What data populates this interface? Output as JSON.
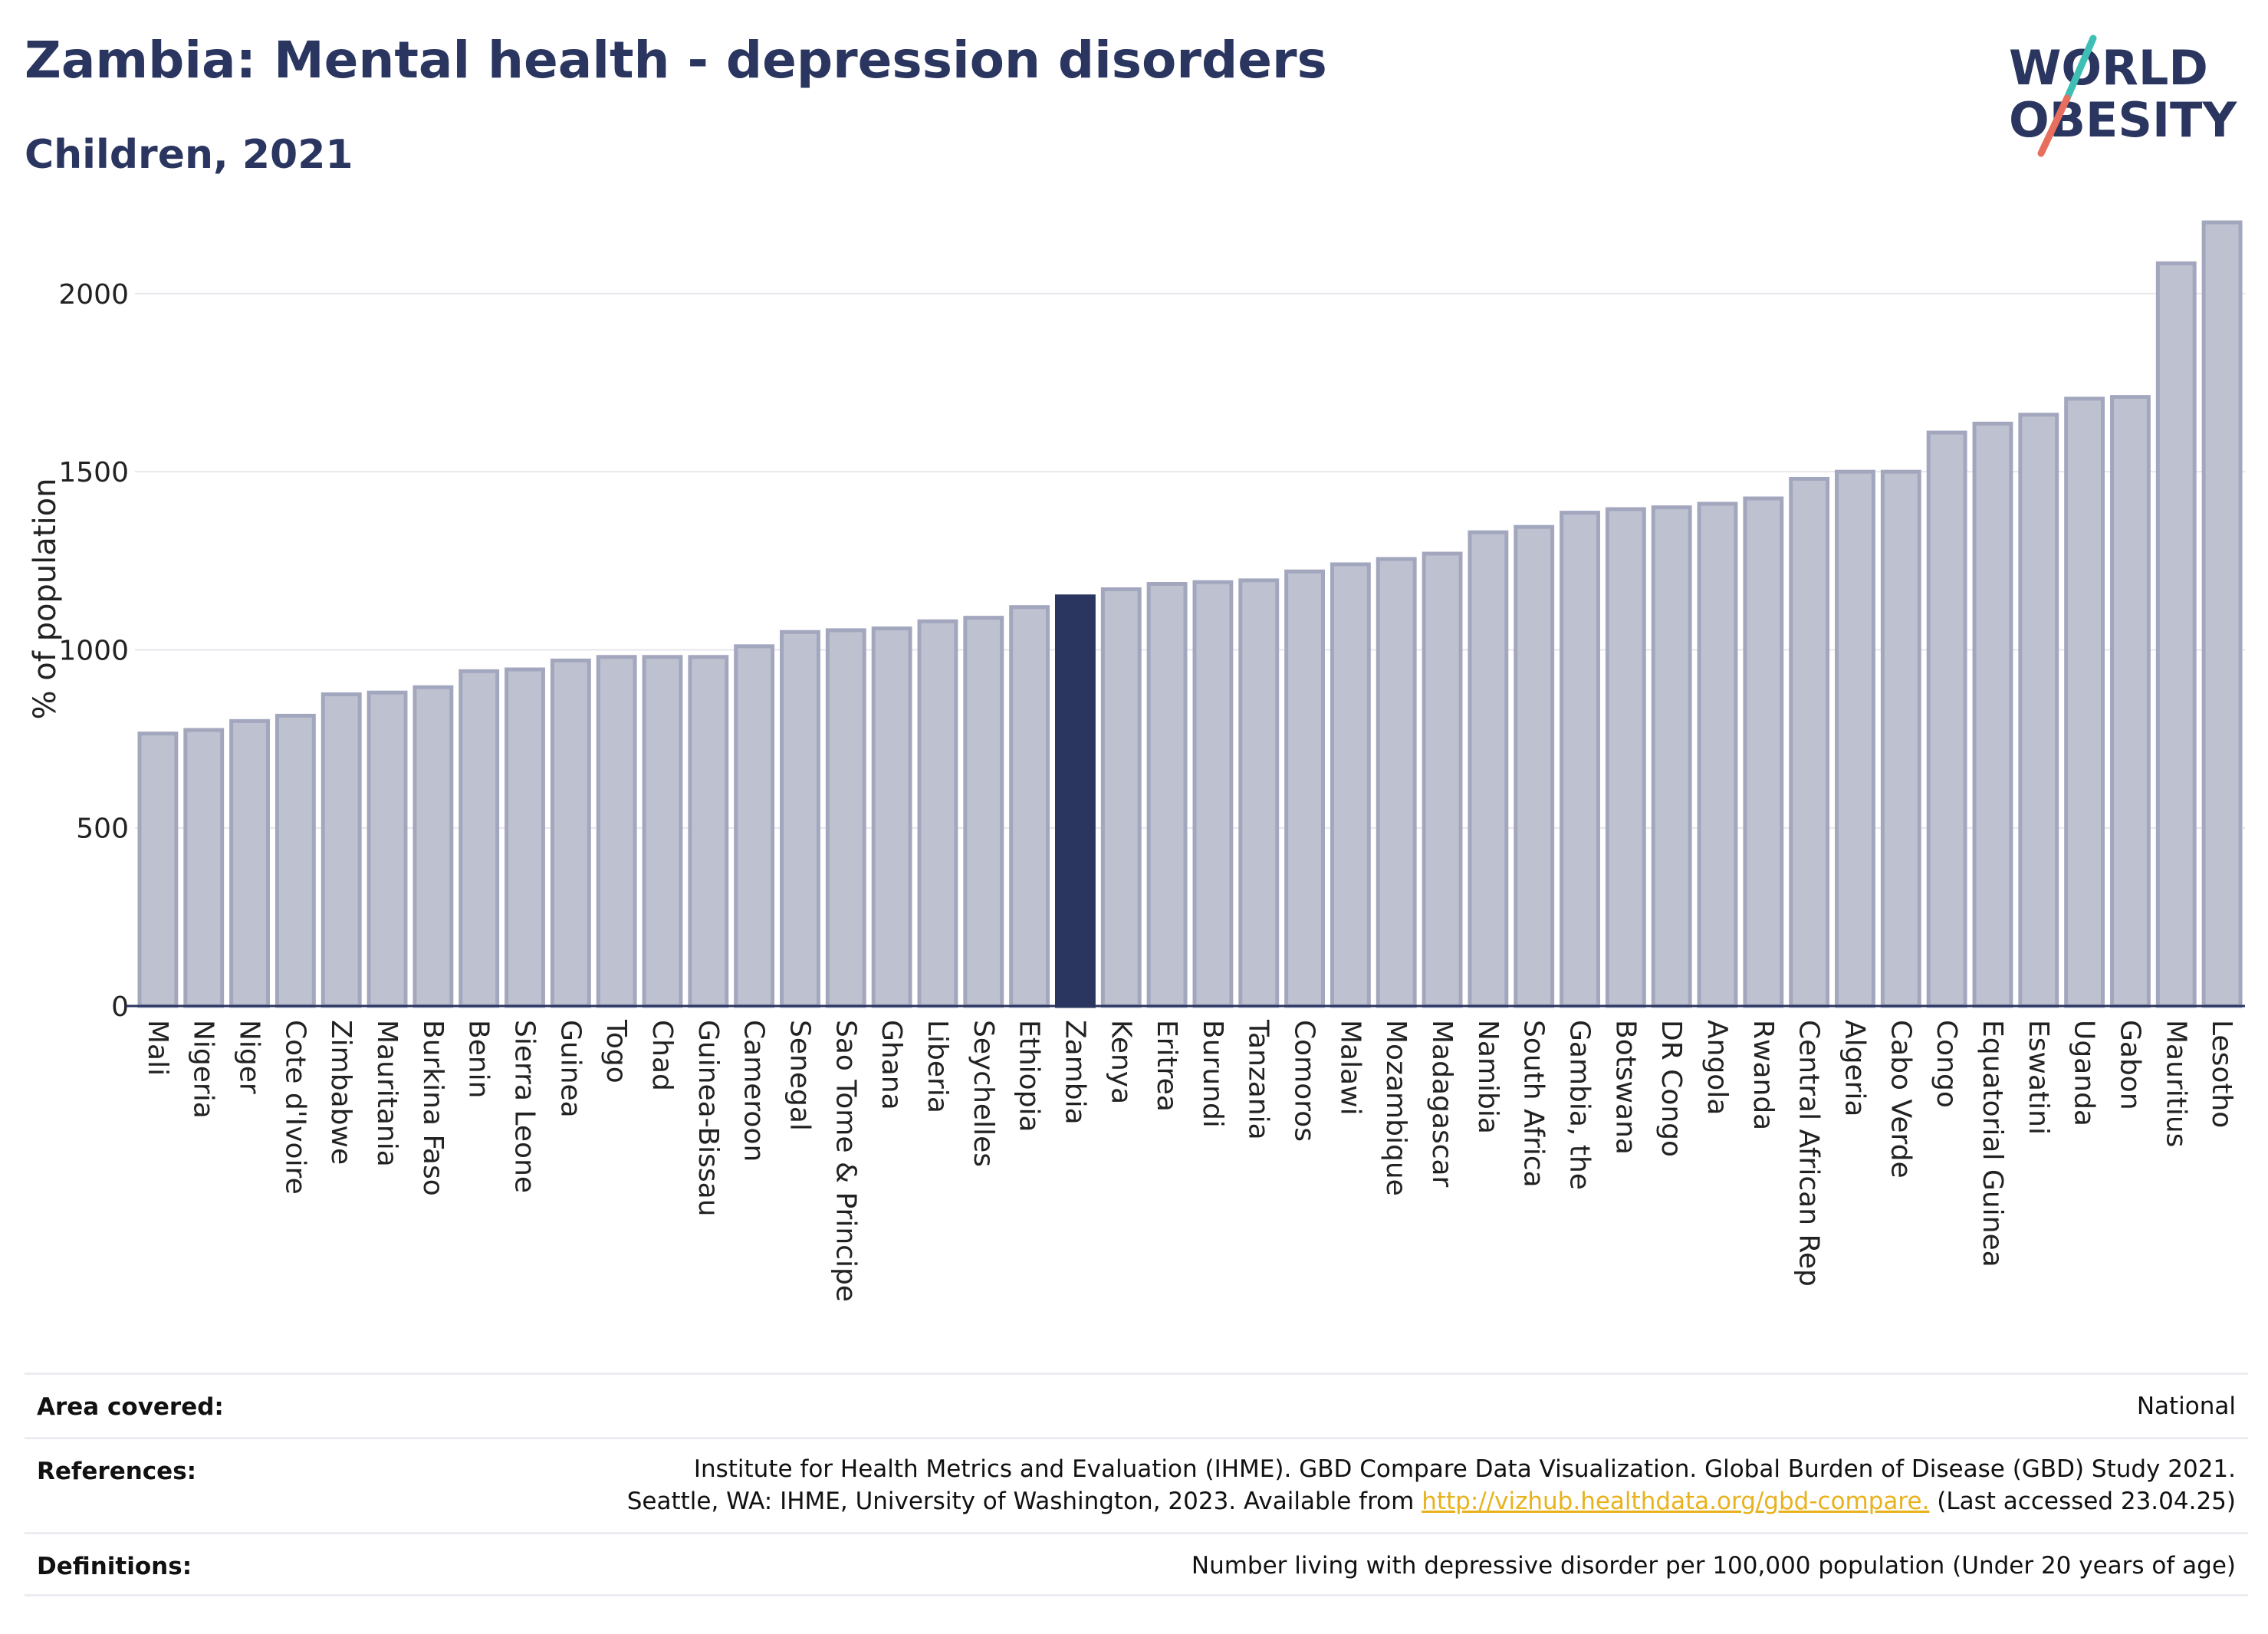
{
  "header": {
    "title": "Zambia: Mental health - depression disorders",
    "subtitle": "Children, 2021"
  },
  "logo": {
    "line1": "WORLD",
    "line2": "OBESITY"
  },
  "chart_data": {
    "type": "bar",
    "ylabel": "% of population",
    "xlabel": "",
    "ylim": [
      0,
      2200
    ],
    "yticks": [
      0,
      500,
      1000,
      1500,
      2000
    ],
    "grid": true,
    "highlight": "Zambia",
    "colors": {
      "bar": "#bec1d0",
      "bar_edge": "#a3a7be",
      "highlight": "#2a3560"
    },
    "categories": [
      "Mali",
      "Nigeria",
      "Niger",
      "Cote d'Ivoire",
      "Zimbabwe",
      "Mauritania",
      "Burkina Faso",
      "Benin",
      "Sierra Leone",
      "Guinea",
      "Togo",
      "Chad",
      "Guinea-Bissau",
      "Cameroon",
      "Senegal",
      "Sao Tome & Principe",
      "Ghana",
      "Liberia",
      "Seychelles",
      "Ethiopia",
      "Zambia",
      "Kenya",
      "Eritrea",
      "Burundi",
      "Tanzania",
      "Comoros",
      "Malawi",
      "Mozambique",
      "Madagascar",
      "Namibia",
      "South Africa",
      "Gambia, the",
      "Botswana",
      "DR Congo",
      "Angola",
      "Rwanda",
      "Central African Rep",
      "Algeria",
      "Cabo Verde",
      "Congo",
      "Equatorial Guinea",
      "Eswatini",
      "Uganda",
      "Gabon",
      "Mauritius",
      "Lesotho"
    ],
    "values": [
      765,
      775,
      800,
      815,
      875,
      880,
      895,
      940,
      945,
      970,
      980,
      980,
      980,
      1010,
      1050,
      1055,
      1060,
      1080,
      1090,
      1120,
      1150,
      1170,
      1185,
      1190,
      1195,
      1220,
      1240,
      1255,
      1270,
      1330,
      1345,
      1385,
      1395,
      1400,
      1410,
      1425,
      1480,
      1500,
      1500,
      1610,
      1635,
      1660,
      1705,
      1710,
      2085,
      2200
    ]
  },
  "footer": {
    "area_label": "Area covered:",
    "area_value": "National",
    "ref_label": "References:",
    "ref_line1": "Institute for Health Metrics and Evaluation (IHME). GBD Compare Data Visualization. Global Burden of Disease (GBD) Study 2021.",
    "ref_line2_pre": "Seattle, WA: IHME, University of Washington, 2023. Available from",
    "ref_link": "http://vizhub.healthdata.org/gbd-compare.",
    "ref_line2_post": "(Last accessed 23.04.25)",
    "def_label": "Definitions:",
    "def_value": "Number living with depressive disorder per 100,000 population (Under 20 years of age)"
  }
}
